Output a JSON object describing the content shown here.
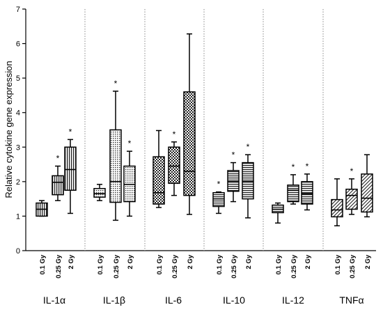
{
  "chart_data": {
    "type": "box",
    "ylabel": "Relative cytokine gene expression",
    "ylim": [
      0,
      7
    ],
    "yticks": [
      "0",
      "1",
      "2",
      "3",
      "4",
      "5",
      "6",
      "7"
    ],
    "dose_labels": [
      "0.1 Gy",
      "0.25 Gy",
      "2 Gy"
    ],
    "significance_marker": "*",
    "groups": [
      {
        "name": "IL-1α",
        "pattern": "vlines",
        "boxes": [
          {
            "min": 1.0,
            "q1": 1.0,
            "median": 1.2,
            "q3": 1.38,
            "max": 1.45,
            "sig": false
          },
          {
            "min": 1.45,
            "q1": 1.62,
            "median": 1.98,
            "q3": 2.17,
            "max": 2.45,
            "sig": true
          },
          {
            "min": 1.08,
            "q1": 1.75,
            "median": 2.35,
            "q3": 3.0,
            "max": 3.22,
            "sig": true
          }
        ]
      },
      {
        "name": "IL-1β",
        "pattern": "dots",
        "boxes": [
          {
            "min": 1.45,
            "q1": 1.55,
            "median": 1.65,
            "q3": 1.8,
            "max": 1.92,
            "sig": false
          },
          {
            "min": 0.88,
            "q1": 1.4,
            "median": 2.0,
            "q3": 3.5,
            "max": 4.62,
            "sig": true
          },
          {
            "min": 1.0,
            "q1": 1.42,
            "median": 1.92,
            "q3": 2.45,
            "max": 2.88,
            "sig": true
          }
        ]
      },
      {
        "name": "IL-6",
        "pattern": "checker",
        "boxes": [
          {
            "min": 1.25,
            "q1": 1.35,
            "median": 1.68,
            "q3": 2.72,
            "max": 3.48,
            "sig": false
          },
          {
            "min": 1.6,
            "q1": 1.95,
            "median": 2.45,
            "q3": 3.0,
            "max": 3.15,
            "sig": true
          },
          {
            "min": 1.05,
            "q1": 1.6,
            "median": 2.3,
            "q3": 4.6,
            "max": 6.28,
            "sig": false
          }
        ]
      },
      {
        "name": "IL-10",
        "pattern": "hlines",
        "boxes": [
          {
            "min": 1.08,
            "q1": 1.28,
            "median": 1.5,
            "q3": 1.68,
            "max": 1.7,
            "sig": true
          },
          {
            "min": 1.42,
            "q1": 1.72,
            "median": 2.0,
            "q3": 2.32,
            "max": 2.55,
            "sig": true
          },
          {
            "min": 0.95,
            "q1": 1.5,
            "median": 2.0,
            "q3": 2.55,
            "max": 2.78,
            "sig": true
          }
        ]
      },
      {
        "name": "IL-12",
        "pattern": "hlines",
        "boxes": [
          {
            "min": 0.8,
            "q1": 1.1,
            "median": 1.2,
            "q3": 1.32,
            "max": 1.38,
            "sig": false
          },
          {
            "min": 1.35,
            "q1": 1.42,
            "median": 1.75,
            "q3": 1.9,
            "max": 2.2,
            "sig": true
          },
          {
            "min": 1.18,
            "q1": 1.35,
            "median": 1.65,
            "q3": 2.0,
            "max": 2.22,
            "sig": true
          }
        ]
      },
      {
        "name": "TNFα",
        "pattern": "diag",
        "boxes": [
          {
            "min": 0.72,
            "q1": 0.98,
            "median": 1.18,
            "q3": 1.48,
            "max": 2.08,
            "sig": false
          },
          {
            "min": 1.05,
            "q1": 1.2,
            "median": 1.6,
            "q3": 1.78,
            "max": 2.08,
            "sig": true
          },
          {
            "min": 0.98,
            "q1": 1.12,
            "median": 1.52,
            "q3": 2.22,
            "max": 2.78,
            "sig": false
          }
        ]
      }
    ]
  }
}
